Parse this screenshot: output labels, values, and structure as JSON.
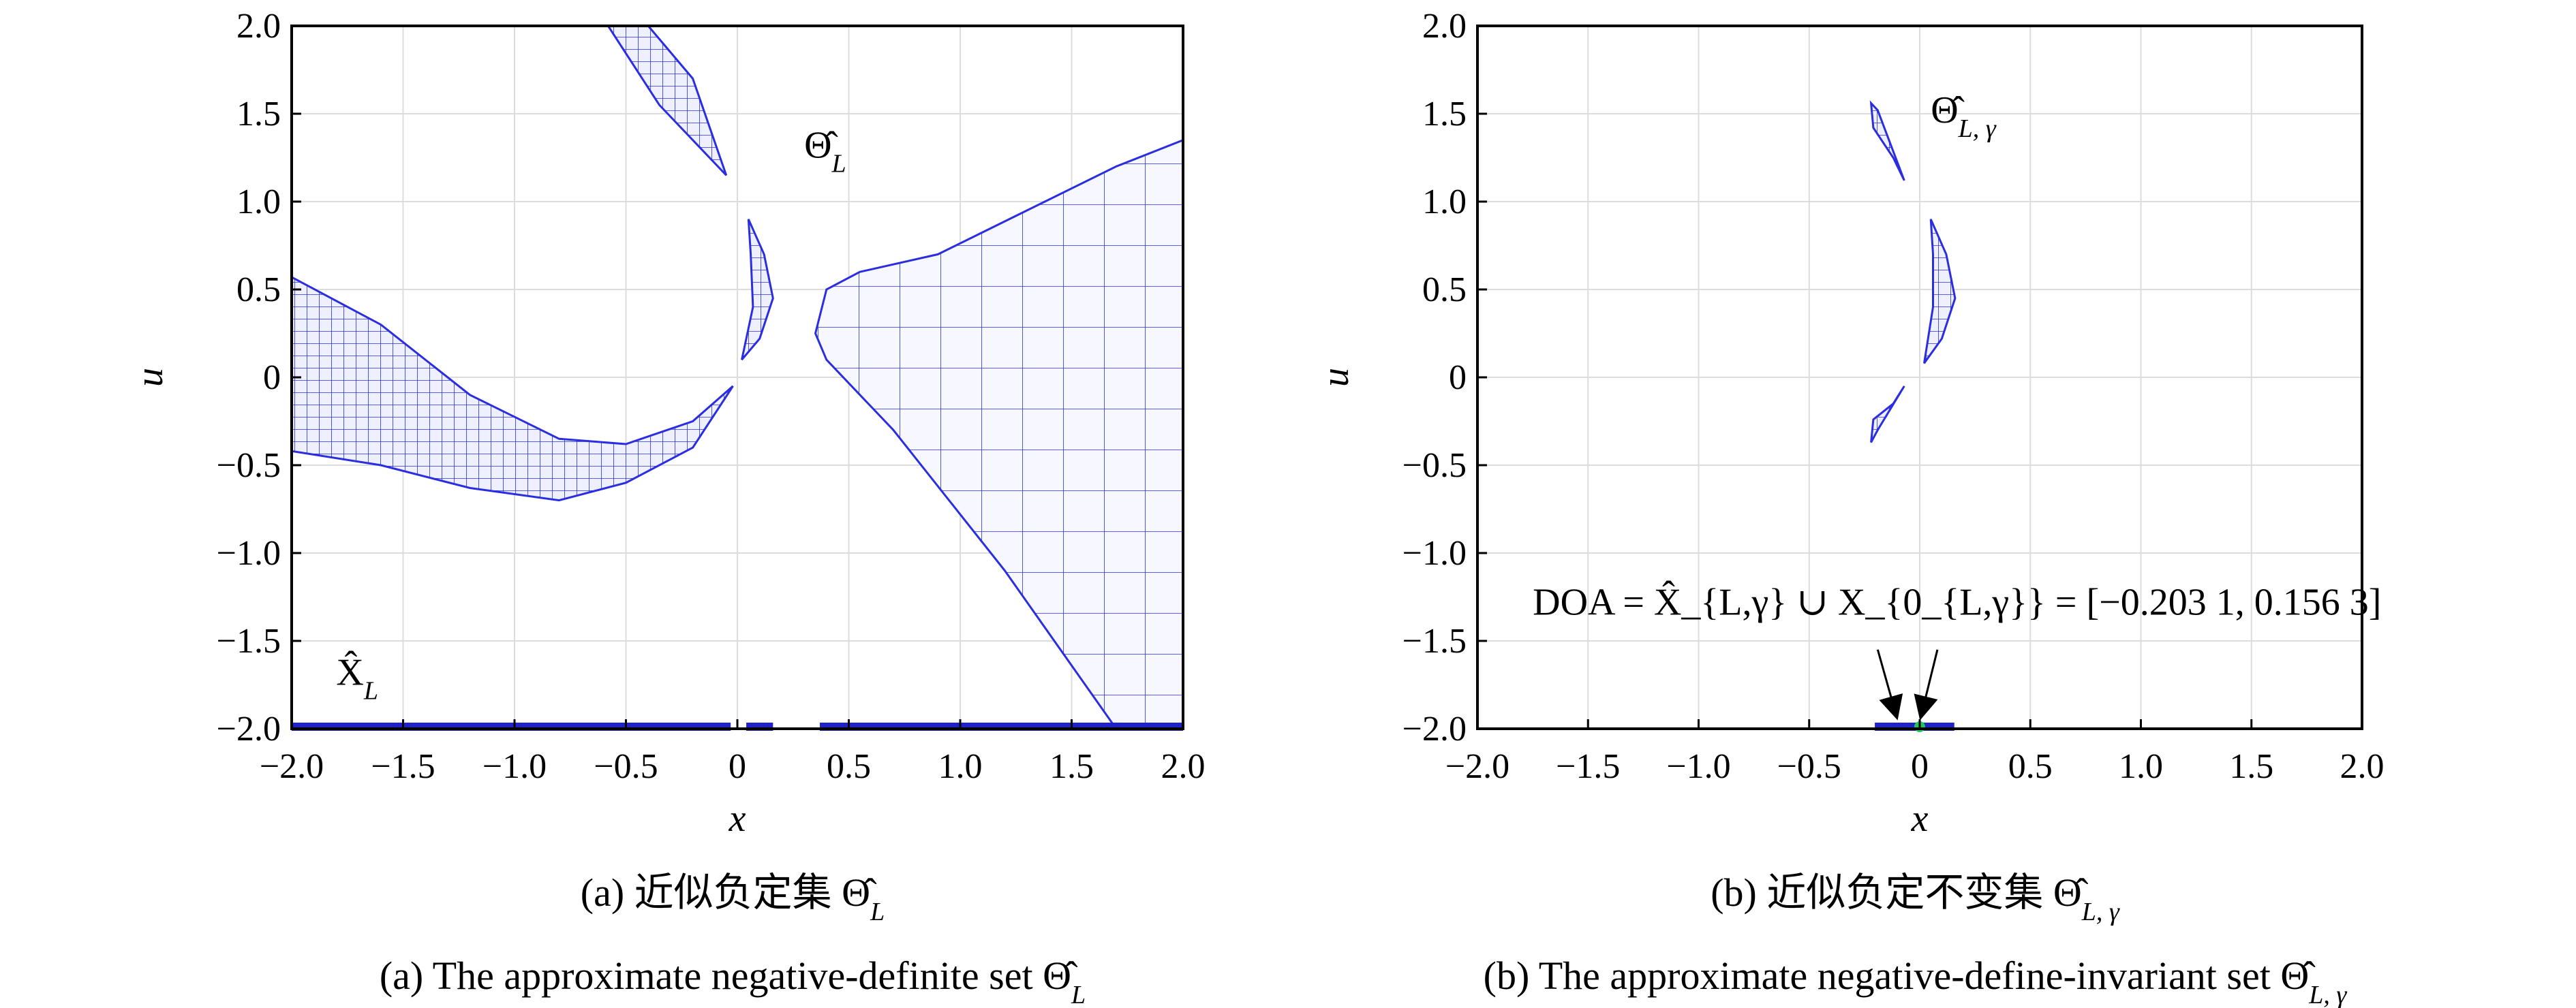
{
  "chart_data": [
    {
      "type": "scatter",
      "panel_label": "(a)",
      "xlabel": "x",
      "ylabel": "u",
      "xlim": [
        -2.0,
        2.0
      ],
      "ylim": [
        -2.0,
        2.0
      ],
      "x_ticks": [
        "−2.0",
        "−1.5",
        "−1.0",
        "−0.5",
        "0",
        "0.5",
        "1.0",
        "1.5",
        "2.0"
      ],
      "y_ticks": [
        "2.0",
        "1.5",
        "1.0",
        "0.5",
        "0",
        "−0.5",
        "−1.0",
        "−1.5",
        "−2.0"
      ],
      "grid": true,
      "annotations": [
        {
          "label": "Θ̂",
          "sub": "L",
          "x": 0.3,
          "y": 1.25
        },
        {
          "label": "X̂",
          "sub": "L",
          "x": -1.8,
          "y": -1.75
        }
      ],
      "regions": [
        {
          "name": "upper-left-arc",
          "polygon": [
            [
              -0.58,
              2.0
            ],
            [
              -0.4,
              2.0
            ],
            [
              -0.2,
              1.7
            ],
            [
              -0.05,
              1.15
            ],
            [
              -0.35,
              1.55
            ]
          ]
        },
        {
          "name": "center-arc",
          "polygon": [
            [
              0.05,
              0.9
            ],
            [
              0.12,
              0.7
            ],
            [
              0.16,
              0.45
            ],
            [
              0.1,
              0.22
            ],
            [
              0.02,
              0.1
            ],
            [
              0.07,
              0.4
            ],
            [
              0.06,
              0.7
            ]
          ]
        },
        {
          "name": "left-band",
          "polygon": [
            [
              -2.0,
              0.57
            ],
            [
              -1.6,
              0.3
            ],
            [
              -1.2,
              -0.1
            ],
            [
              -0.8,
              -0.35
            ],
            [
              -0.5,
              -0.38
            ],
            [
              -0.2,
              -0.25
            ],
            [
              -0.02,
              -0.05
            ],
            [
              -0.2,
              -0.4
            ],
            [
              -0.5,
              -0.6
            ],
            [
              -0.8,
              -0.7
            ],
            [
              -1.2,
              -0.63
            ],
            [
              -1.6,
              -0.5
            ],
            [
              -2.0,
              -0.42
            ]
          ]
        },
        {
          "name": "right-region",
          "polygon": [
            [
              0.55,
              0.6
            ],
            [
              0.9,
              0.7
            ],
            [
              1.3,
              0.95
            ],
            [
              1.7,
              1.2
            ],
            [
              2.0,
              1.35
            ],
            [
              2.0,
              -2.0
            ],
            [
              1.7,
              -2.0
            ],
            [
              1.2,
              -1.1
            ],
            [
              0.7,
              -0.3
            ],
            [
              0.4,
              0.1
            ],
            [
              0.35,
              0.25
            ],
            [
              0.4,
              0.5
            ]
          ]
        }
      ],
      "x_intervals_on_axis": [
        [
          -2.0,
          -0.03
        ],
        [
          0.04,
          0.16
        ],
        [
          0.37,
          2.0
        ]
      ]
    },
    {
      "type": "scatter",
      "panel_label": "(b)",
      "xlabel": "x",
      "ylabel": "u",
      "xlim": [
        -2.0,
        2.0
      ],
      "ylim": [
        -2.0,
        2.0
      ],
      "x_ticks": [
        "−2.0",
        "−1.5",
        "−1.0",
        "−0.5",
        "0",
        "0.5",
        "1.0",
        "1.5",
        "2.0"
      ],
      "y_ticks": [
        "2.0",
        "1.5",
        "1.0",
        "0.5",
        "0",
        "−0.5",
        "−1.0",
        "−1.5",
        "−2.0"
      ],
      "grid": true,
      "annotations": [
        {
          "label": "Θ̂",
          "sub": "L, γ",
          "x": 0.05,
          "y": 1.45
        },
        {
          "label": "DOA = X̂_{L,γ} ∪ X_{0_{L,γ}} = [−0.203 1, 0.156 3]",
          "x": -1.75,
          "y": -1.35
        }
      ],
      "doa_interval": [
        -0.2031,
        0.1563
      ],
      "origin_marker": [
        0,
        -2.0
      ],
      "regions": [
        {
          "name": "upper-small-arc",
          "polygon": [
            [
              -0.22,
              1.56
            ],
            [
              -0.19,
              1.52
            ],
            [
              -0.07,
              1.12
            ],
            [
              -0.12,
              1.25
            ],
            [
              -0.21,
              1.42
            ]
          ]
        },
        {
          "name": "center-arc",
          "polygon": [
            [
              0.05,
              0.9
            ],
            [
              0.12,
              0.7
            ],
            [
              0.16,
              0.45
            ],
            [
              0.1,
              0.22
            ],
            [
              0.02,
              0.08
            ],
            [
              0.06,
              0.4
            ],
            [
              0.06,
              0.7
            ]
          ]
        },
        {
          "name": "lower-small-arc",
          "polygon": [
            [
              -0.22,
              -0.37
            ],
            [
              -0.19,
              -0.3
            ],
            [
              -0.07,
              -0.05
            ],
            [
              -0.12,
              -0.15
            ],
            [
              -0.21,
              -0.24
            ]
          ]
        }
      ]
    }
  ],
  "captions": {
    "a_cn": "(a) 近似负定集 Θ̂",
    "a_cn_sub": "L",
    "a_en": "(a) The approximate negative-definite set Θ̂",
    "a_en_sub": "L",
    "b_cn": "(b) 近似负定不变集 Θ̂",
    "b_cn_sub": "L, γ",
    "b_en": "(b) The approximate negative-define-invariant set Θ̂",
    "b_en_sub": "L, γ"
  },
  "colors": {
    "region_stroke": "#2a2ee0",
    "region_fill": "#e7e9ff",
    "interval": "#1f22c8",
    "origin": "#22c55e"
  }
}
